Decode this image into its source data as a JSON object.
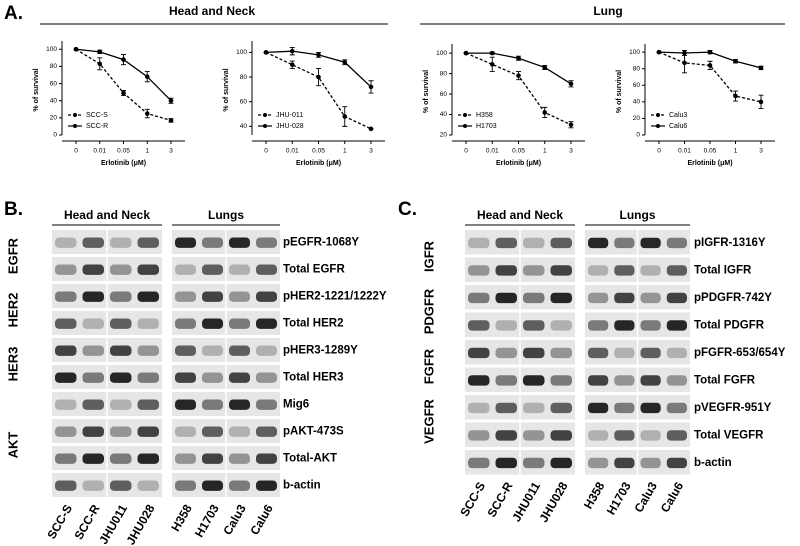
{
  "panel_labels": [
    "A.",
    "B.",
    "C."
  ],
  "group_headers": [
    "Head and Neck",
    "Lung"
  ],
  "chart_data": [
    {
      "type": "line",
      "x_label": "Erlotinib (μM)",
      "y_label": "% of survival",
      "categories": [
        "0",
        "0.01",
        "0.05",
        "1",
        "3"
      ],
      "ylim": [
        0,
        105
      ],
      "yticks": [
        0,
        20,
        40,
        60,
        80,
        100
      ],
      "legend": "lower left",
      "series": [
        {
          "name": "SCC-S",
          "color": "#000000",
          "dashed": true,
          "values": [
            100,
            83,
            49,
            25,
            17
          ],
          "errors": [
            0,
            7,
            3,
            5,
            2
          ]
        },
        {
          "name": "SCC-R",
          "color": "#000000",
          "dashed": false,
          "values": [
            100,
            97,
            88,
            68,
            40
          ],
          "errors": [
            0,
            2,
            6,
            6,
            3
          ]
        }
      ]
    },
    {
      "type": "line",
      "x_label": "Erlotinib (μM)",
      "y_label": "% of survival",
      "categories": [
        "0",
        "0.01",
        "0.05",
        "1",
        "3"
      ],
      "ylim": [
        33,
        106
      ],
      "yticks": [
        40,
        60,
        80,
        100
      ],
      "legend": "lower left",
      "series": [
        {
          "name": "JHU-011",
          "color": "#000000",
          "dashed": true,
          "values": [
            100,
            90,
            80,
            48,
            38
          ],
          "errors": [
            0,
            3,
            7,
            8,
            0
          ]
        },
        {
          "name": "JHU-028",
          "color": "#000000",
          "dashed": false,
          "values": [
            100,
            101,
            98,
            92,
            72
          ],
          "errors": [
            0,
            3,
            2,
            2,
            5
          ]
        }
      ]
    },
    {
      "type": "line",
      "x_label": "Erlotinib (μM)",
      "y_label": "% of survival",
      "categories": [
        "0",
        "0.01",
        "0.05",
        "1",
        "3"
      ],
      "ylim": [
        20,
        105
      ],
      "yticks": [
        20,
        40,
        60,
        80,
        100
      ],
      "legend": "lower left",
      "series": [
        {
          "name": "H358",
          "color": "#000000",
          "dashed": true,
          "values": [
            100,
            89,
            78,
            42,
            30
          ],
          "errors": [
            0,
            7,
            4,
            5,
            3
          ]
        },
        {
          "name": "H1703",
          "color": "#000000",
          "dashed": false,
          "values": [
            100,
            100,
            95,
            86,
            70
          ],
          "errors": [
            0,
            1,
            2,
            2,
            3
          ]
        }
      ]
    },
    {
      "type": "line",
      "x_label": "Erlotinib (μM)",
      "y_label": "% of survival",
      "categories": [
        "0",
        "0.01",
        "0.05",
        "1",
        "3"
      ],
      "ylim": [
        0,
        105
      ],
      "yticks": [
        0,
        20,
        40,
        60,
        80,
        100
      ],
      "legend": "lower left",
      "series": [
        {
          "name": "Calu3",
          "color": "#000000",
          "dashed": true,
          "values": [
            100,
            87,
            84,
            47,
            40
          ],
          "errors": [
            0,
            12,
            5,
            6,
            8
          ]
        },
        {
          "name": "Calu6",
          "color": "#000000",
          "dashed": false,
          "values": [
            100,
            99,
            100,
            89,
            81
          ],
          "errors": [
            0,
            3,
            2,
            2,
            2
          ]
        }
      ]
    }
  ],
  "blot_b": {
    "headers": [
      "Head and Neck",
      "Lungs"
    ],
    "groups": [
      "EGFR",
      "HER2",
      "HER3",
      "AKT"
    ],
    "rows": [
      "pEGFR-1068Y",
      "Total EGFR",
      "pHER2-1221/1222Y",
      "Total HER2",
      "pHER3-1289Y",
      "Total HER3",
      "Mig6",
      "pAKT-473S",
      "Total-AKT",
      "b-actin"
    ],
    "lanes": [
      "SCC-S",
      "SCC-R",
      "JHU011",
      "JHU028",
      "H358",
      "H1703",
      "Calu3",
      "Calu6"
    ]
  },
  "blot_c": {
    "headers": [
      "Head and Neck",
      "Lungs"
    ],
    "groups": [
      "IGFR",
      "PDGFR",
      "FGFR",
      "VEGFR"
    ],
    "rows": [
      "pIGFR-1316Y",
      "Total IGFR",
      "pPDGFR-742Y",
      "Total PDGFR",
      "pFGFR-653/654Y",
      "Total FGFR",
      "pVEGFR-951Y",
      "Total VEGFR",
      "b-actin"
    ],
    "lanes": [
      "SCC-S",
      "SCC-R",
      "JHU011",
      "JHU028",
      "H358",
      "H1703",
      "Calu3",
      "Calu6"
    ]
  }
}
